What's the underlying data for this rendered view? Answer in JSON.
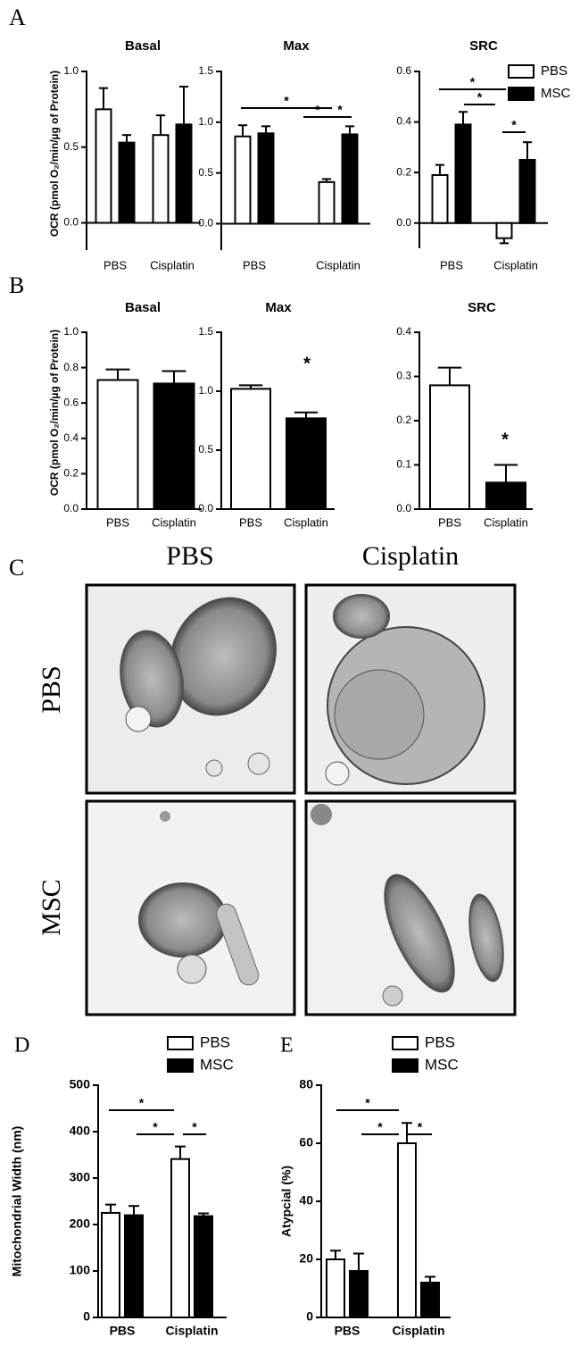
{
  "panel_labels": [
    "A",
    "B",
    "C",
    "D",
    "E"
  ],
  "image_panel": {
    "column_labels": [
      "PBS",
      "Cisplatin"
    ],
    "row_labels": [
      "PBS",
      "MSC"
    ]
  },
  "chart_data": [
    {
      "type": "bar",
      "title": "Basal",
      "ylabel": "OCR (pmol O₂/min/µg of Protein)",
      "categories": [
        "PBS",
        "Cisplatin"
      ],
      "series": [
        {
          "color": "#ffffff",
          "values": [
            0.75,
            0.58
          ],
          "errors": [
            0.14,
            0.13
          ]
        },
        {
          "color": "#000000",
          "values": [
            0.53,
            0.65
          ],
          "errors": [
            0.05,
            0.25
          ]
        }
      ],
      "ylim": [
        -0.18,
        1.0
      ],
      "yticks": [
        {
          "value": 0,
          "label": "0.0"
        },
        0.5,
        {
          "value": 1,
          "label": "1.0"
        }
      ]
    },
    {
      "type": "bar",
      "title": "Max",
      "categories": [
        "PBS",
        "Cisplatin"
      ],
      "series": [
        {
          "color": "#ffffff",
          "values": [
            0.86,
            0.41
          ],
          "errors": [
            0.11,
            0.03
          ]
        },
        {
          "color": "#000000",
          "values": [
            0.89,
            0.88
          ],
          "errors": [
            0.07,
            0.08
          ]
        }
      ],
      "ylim": [
        -0.26,
        1.5
      ],
      "yticks": [
        {
          "value": 0,
          "label": "0.0"
        },
        0.5,
        {
          "value": 1,
          "label": "1.0"
        },
        1.5
      ],
      "annotations": [
        "*",
        "*",
        "*"
      ]
    },
    {
      "type": "bar",
      "title": "SRC",
      "categories": [
        "PBS",
        "Cisplatin"
      ],
      "series": [
        {
          "name": "PBS",
          "color": "#ffffff",
          "values": [
            0.19,
            -0.06
          ],
          "errors": [
            0.04,
            0.02
          ]
        },
        {
          "name": "MSC",
          "color": "#000000",
          "values": [
            0.39,
            0.25
          ],
          "errors": [
            0.05,
            0.07
          ]
        }
      ],
      "ylim": [
        -0.1,
        0.6
      ],
      "yticks": [
        {
          "value": 0,
          "label": "0.0"
        },
        0.2,
        0.4,
        0.6
      ],
      "legend": "upper right",
      "annotations": [
        "*",
        "*",
        "*"
      ]
    },
    {
      "type": "bar",
      "title": "Basal",
      "ylabel": "OCR (pmol O₂/min/µg of Protein)",
      "categories": [
        "PBS",
        "Cisplatin"
      ],
      "values": [
        0.73,
        0.71
      ],
      "errors": [
        0.06,
        0.07
      ],
      "colors": [
        "#ffffff",
        "#000000"
      ],
      "ylim": [
        0,
        1.0
      ],
      "yticks": [
        {
          "value": 0,
          "label": "0.0"
        },
        0.2,
        0.4,
        0.6,
        0.8,
        {
          "value": 1,
          "label": "1.0"
        }
      ]
    },
    {
      "type": "bar",
      "title": "Max",
      "categories": [
        "PBS",
        "Cisplatin"
      ],
      "values": [
        1.02,
        0.77
      ],
      "errors": [
        0.03,
        0.05
      ],
      "colors": [
        "#ffffff",
        "#000000"
      ],
      "ylim": [
        0,
        1.5
      ],
      "yticks": [
        {
          "value": 0,
          "label": "0.0"
        },
        0.5,
        {
          "value": 1,
          "label": "1.0"
        },
        1.5
      ],
      "annotations": [
        "*"
      ]
    },
    {
      "type": "bar",
      "title": "SRC",
      "categories": [
        "PBS",
        "Cisplatin"
      ],
      "values": [
        0.28,
        0.06
      ],
      "errors": [
        0.04,
        0.04
      ],
      "colors": [
        "#ffffff",
        "#000000"
      ],
      "ylim": [
        0,
        0.4
      ],
      "yticks": [
        {
          "value": 0,
          "label": "0.0"
        },
        0.1,
        0.2,
        0.3,
        0.4
      ],
      "annotations": [
        "*"
      ]
    },
    {
      "type": "bar",
      "ylabel": "Mitochondrial Width (nm)",
      "categories": [
        "PBS",
        "Cisplatin"
      ],
      "series": [
        {
          "name": "PBS",
          "color": "#ffffff",
          "values": [
            225,
            341
          ],
          "errors": [
            18,
            27
          ]
        },
        {
          "name": "MSC",
          "color": "#000000",
          "values": [
            220,
            218
          ],
          "errors": [
            20,
            6
          ]
        }
      ],
      "ylim": [
        0,
        500
      ],
      "yticks": [
        0,
        100,
        200,
        300,
        400,
        500
      ],
      "legend": "top",
      "annotations": [
        "*",
        "*",
        "*"
      ]
    },
    {
      "type": "bar",
      "ylabel": "Atypcial (%)",
      "categories": [
        "PBS",
        "Cisplatin"
      ],
      "series": [
        {
          "name": "PBS",
          "color": "#ffffff",
          "values": [
            20,
            60
          ],
          "errors": [
            3,
            7
          ]
        },
        {
          "name": "MSC",
          "color": "#000000",
          "values": [
            16,
            12
          ],
          "errors": [
            6,
            2
          ]
        }
      ],
      "ylim": [
        0,
        80
      ],
      "yticks": [
        0,
        20,
        40,
        60,
        80
      ],
      "legend": "top",
      "annotations": [
        "*",
        "*",
        "*"
      ]
    }
  ]
}
